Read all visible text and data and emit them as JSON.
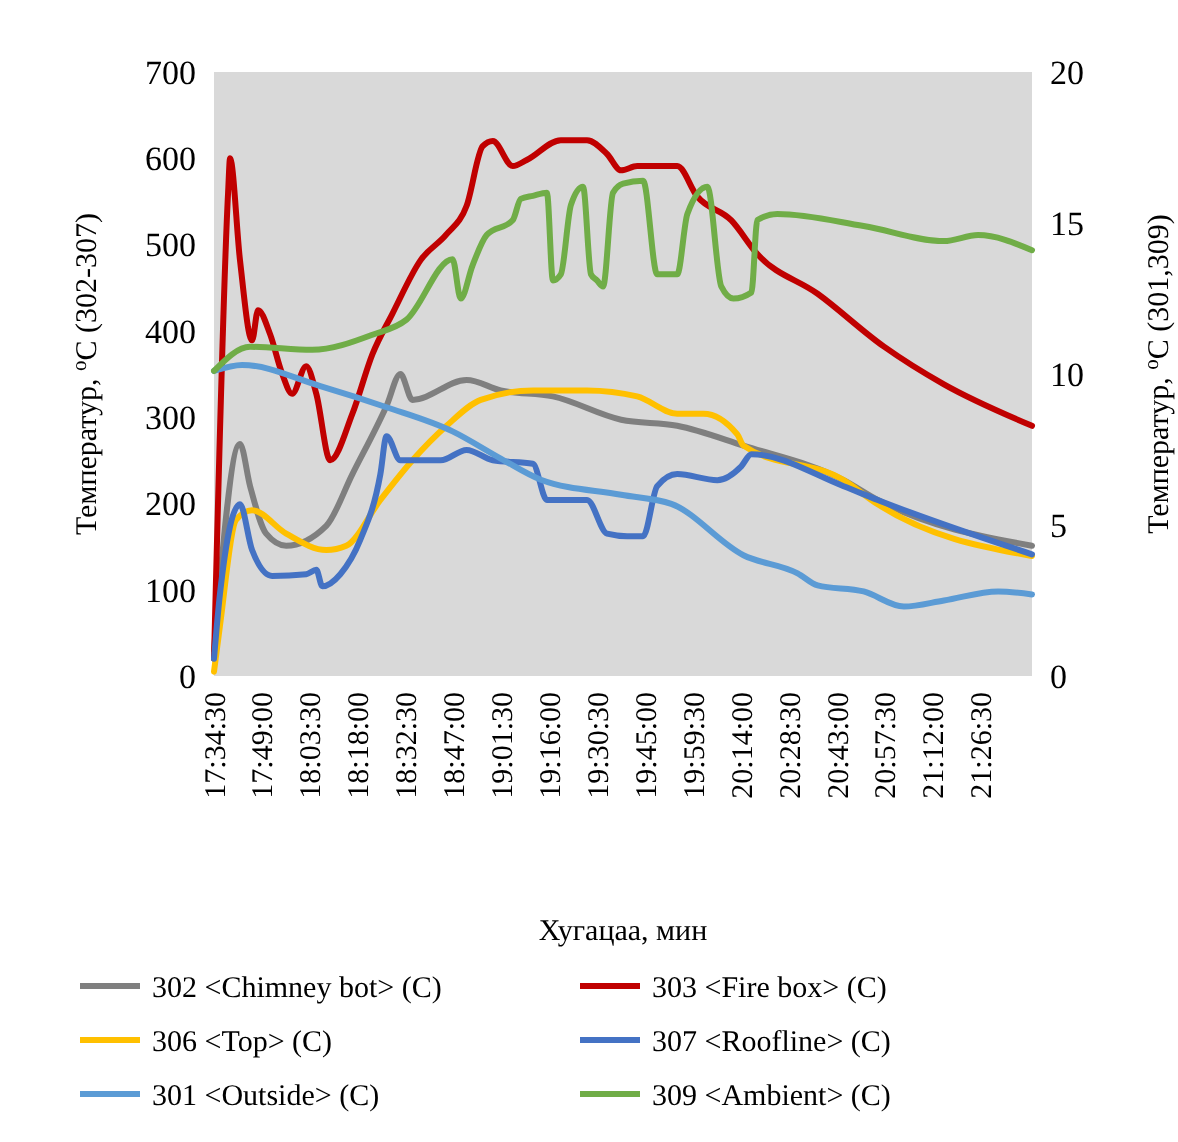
{
  "chart_data": {
    "type": "line",
    "xlabel": "Хугацаа, мин",
    "ylabel": "Температур, $^{o}$C (302-307)",
    "y2label": "Температур, $^{o}$C (301,309)",
    "xlim": [
      17.575,
      21.7
    ],
    "xticks": [
      {
        "value": 17.575,
        "label": "17:34:30"
      },
      {
        "value": 17.8167,
        "label": "17:49:00"
      },
      {
        "value": 18.0583,
        "label": "18:03:30"
      },
      {
        "value": 18.3,
        "label": "18:18:00"
      },
      {
        "value": 18.5417,
        "label": "18:32:30"
      },
      {
        "value": 18.7833,
        "label": "18:47:00"
      },
      {
        "value": 19.025,
        "label": "19:01:30"
      },
      {
        "value": 19.2667,
        "label": "19:16:00"
      },
      {
        "value": 19.5083,
        "label": "19:30:30"
      },
      {
        "value": 19.75,
        "label": "19:45:00"
      },
      {
        "value": 19.9917,
        "label": "19:59:30"
      },
      {
        "value": 20.2333,
        "label": "20:14:00"
      },
      {
        "value": 20.475,
        "label": "20:28:30"
      },
      {
        "value": 20.7167,
        "label": "20:43:00"
      },
      {
        "value": 20.9583,
        "label": "20:57:30"
      },
      {
        "value": 21.2,
        "label": "21:12:00"
      },
      {
        "value": 21.4417,
        "label": "21:26:30"
      }
    ],
    "ylim": [
      0,
      700
    ],
    "yticks": [
      0,
      100,
      200,
      300,
      400,
      500,
      600,
      700
    ],
    "y2lim": [
      0,
      20
    ],
    "y2ticks": [
      0,
      5,
      10,
      15,
      20
    ],
    "grid": false,
    "legend": "bottom",
    "line_style": "solid",
    "marker": "none",
    "series": [
      {
        "name": "302 <Chimney bot> (C)",
        "color": "#7f7f7f",
        "x": [
          17.575,
          17.706,
          17.757,
          17.838,
          17.939,
          18.141,
          18.273,
          18.445,
          18.515,
          18.576,
          18.849,
          19.021,
          19.284,
          19.628,
          19.911,
          20.245,
          20.75,
          20.922,
          21.7
        ],
        "values": [
          30,
          269,
          220,
          165,
          151,
          174,
          234,
          313,
          350,
          320,
          343,
          331,
          324,
          297,
          290,
          267,
          227,
          204,
          151
        ]
      },
      {
        "name": "303 <Fire box> (C)",
        "color": "#c00000",
        "x": [
          17.575,
          17.646,
          17.656,
          17.706,
          17.767,
          17.797,
          17.858,
          17.919,
          17.969,
          18.04,
          18.091,
          18.161,
          18.273,
          18.374,
          18.475,
          18.617,
          18.748,
          18.849,
          18.93,
          18.981,
          19.082,
          19.152,
          19.324,
          19.456,
          19.557,
          19.628,
          19.709,
          19.911,
          20.011,
          20.184,
          20.315,
          20.619,
          20.952,
          21.256,
          21.7
        ],
        "values": [
          20,
          560,
          600,
          482,
          389,
          424,
          396,
          350,
          327,
          359,
          327,
          250,
          304,
          373,
          420,
          482,
          512,
          545,
          614,
          620,
          591,
          598,
          621,
          621,
          605,
          586,
          591,
          591,
          556,
          528,
          489,
          443,
          382,
          338,
          290
        ]
      },
      {
        "name": "306 <Top> (C)",
        "color": "#ffc000",
        "x": [
          17.575,
          17.605,
          17.686,
          17.767,
          17.939,
          18.141,
          18.242,
          18.414,
          18.576,
          18.748,
          18.92,
          19.183,
          19.456,
          19.709,
          19.911,
          20.043,
          20.214,
          20.245,
          20.75,
          20.922,
          21.7
        ],
        "values": [
          5,
          58,
          181,
          192,
          165,
          146,
          151,
          204,
          250,
          290,
          320,
          331,
          331,
          324,
          304,
          304,
          280,
          267,
          227,
          199,
          139
        ]
      },
      {
        "name": "307 <Roofline> (C)",
        "color": "#4472c4",
        "x": [
          17.575,
          17.605,
          17.706,
          17.767,
          17.868,
          18.04,
          18.091,
          18.121,
          18.212,
          18.313,
          18.414,
          18.445,
          18.515,
          18.617,
          18.718,
          18.849,
          18.981,
          19.183,
          19.254,
          19.456,
          19.557,
          19.658,
          19.739,
          19.81,
          19.911,
          20.113,
          20.234,
          20.285,
          20.75,
          20.922,
          21.7
        ],
        "values": [
          20,
          95,
          199,
          146,
          116,
          118,
          123,
          104,
          118,
          158,
          234,
          278,
          250,
          250,
          250,
          262,
          250,
          246,
          204,
          204,
          165,
          162,
          162,
          220,
          234,
          227,
          243,
          257,
          220,
          204,
          141
        ]
      },
      {
        "name": "301 <Outside> (C)",
        "color": "#5b9bd5",
        "axis": "y2",
        "x": [
          17.575,
          17.717,
          18.111,
          18.445,
          18.778,
          19.021,
          19.223,
          19.628,
          19.881,
          20.245,
          20.518,
          20.619,
          20.851,
          21.054,
          21.256,
          21.529,
          21.7
        ],
        "values": [
          10.1,
          10.3,
          9.6,
          8.9,
          8.1,
          7.2,
          6.5,
          6.0,
          5.7,
          4.0,
          3.4,
          3.0,
          2.8,
          2.3,
          2.5,
          2.8,
          2.7
        ]
      },
      {
        "name": "309 <Ambient> (C)",
        "color": "#70ad47",
        "axis": "y2",
        "x": [
          17.575,
          17.757,
          18.07,
          18.374,
          18.546,
          18.778,
          18.819,
          18.879,
          18.95,
          19.082,
          19.122,
          19.183,
          19.254,
          19.284,
          19.324,
          19.375,
          19.436,
          19.476,
          19.506,
          19.537,
          19.587,
          19.638,
          19.739,
          19.81,
          19.911,
          19.962,
          20.063,
          20.133,
          20.194,
          20.285,
          20.315,
          20.416,
          20.851,
          21.256,
          21.428,
          21.7
        ],
        "values": [
          10.1,
          10.9,
          10.8,
          11.3,
          11.8,
          13.8,
          12.5,
          13.6,
          14.6,
          15.1,
          15.8,
          15.9,
          16.0,
          13.1,
          13.3,
          15.6,
          16.2,
          13.3,
          13.1,
          12.9,
          16.0,
          16.3,
          16.4,
          13.3,
          13.3,
          15.3,
          16.2,
          12.9,
          12.5,
          12.7,
          15.1,
          15.3,
          14.9,
          14.4,
          14.6,
          14.1
        ]
      }
    ]
  }
}
